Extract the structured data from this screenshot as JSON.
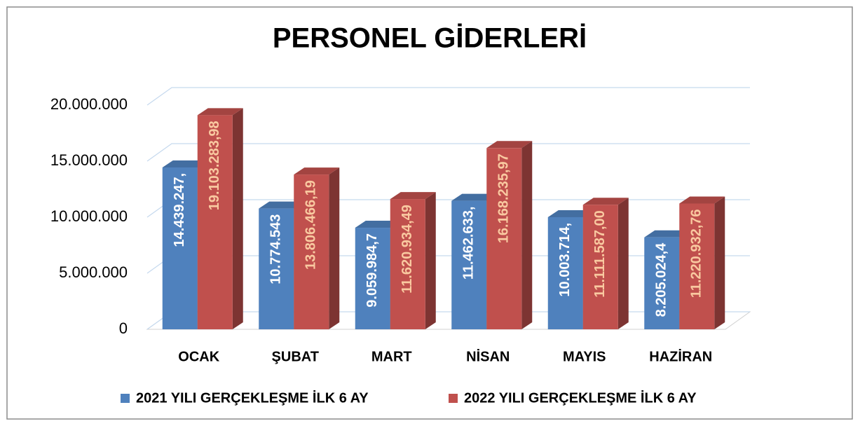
{
  "chart_data": {
    "type": "bar3d",
    "title": "PERSONEL GİDERLERİ",
    "categories": [
      "OCAK",
      "ŞUBAT",
      "MART",
      "NİSAN",
      "MAYIS",
      "HAZİRAN"
    ],
    "series": [
      {
        "name": "2021 YILI GERÇEKLEŞME İLK 6 AY",
        "color": "#4f81bd",
        "values": [
          14439247,
          10774543,
          9059984.7,
          11462633,
          10003714,
          8205024.4
        ],
        "value_labels": [
          "14.439.247,",
          "10.774.543",
          "9.059.984,7",
          "11.462.633,",
          "10.003.714,",
          "8.205.024,4"
        ]
      },
      {
        "name": "2022 YILI GERÇEKLEŞME İLK 6 AY",
        "color": "#c0504d",
        "values": [
          19103283.98,
          13806466.19,
          11620934.49,
          16168235.97,
          11111587.0,
          11220932.76
        ],
        "value_labels": [
          "19.103.283,98",
          "13.806.466,19",
          "11.620.934,49",
          "16.168.235,97",
          "11.111.587,00",
          "11.220.932,76"
        ]
      }
    ],
    "ylim": [
      0,
      20000000
    ],
    "yticks": [
      0,
      {
        "value": 5000000,
        "label": "5.000.000"
      },
      {
        "value": 10000000,
        "label": "10.000.000"
      },
      {
        "value": 15000000,
        "label": "15.000.000"
      },
      {
        "value": 20000000,
        "label": "20.000.000"
      }
    ],
    "grid": true,
    "legend": "bottom"
  }
}
